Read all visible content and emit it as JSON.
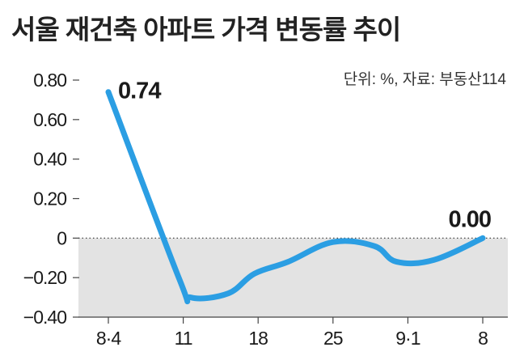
{
  "chart_data": {
    "type": "line",
    "title": "서울 재건축 아파트 가격 변동률 추이",
    "unit_source": "단위: %, 자료: 부동산114",
    "categories": [
      "8·4",
      "11",
      "18",
      "25",
      "9·1",
      "8"
    ],
    "x": [
      0,
      0.95,
      1.1,
      1.6,
      1.95,
      2.4,
      3.0,
      3.55,
      3.85,
      4.35,
      5.0
    ],
    "y": [
      0.74,
      -0.21,
      -0.3,
      -0.28,
      -0.18,
      -0.12,
      -0.02,
      -0.04,
      -0.12,
      -0.11,
      0.0
    ],
    "labels": [
      {
        "text": "0.74",
        "value": 0.74
      },
      {
        "text": "0.00",
        "value": 0.0
      }
    ],
    "yticks": [
      {
        "value": 0.8,
        "label": "0.80"
      },
      {
        "value": 0.6,
        "label": "0.60"
      },
      {
        "value": 0.4,
        "label": "0.40"
      },
      {
        "value": 0.2,
        "label": "0.20"
      },
      {
        "value": 0,
        "label": "0"
      },
      {
        "value": -0.2,
        "label": "−0.20"
      },
      {
        "value": -0.4,
        "label": "−0.40"
      }
    ],
    "ylim": [
      -0.4,
      0.8
    ],
    "xlabel": "",
    "ylabel": "",
    "grid": false,
    "colors": {
      "line": "#2b9ee3",
      "negative_area": "#e3e3e3",
      "text": "#1a1a1a"
    }
  }
}
